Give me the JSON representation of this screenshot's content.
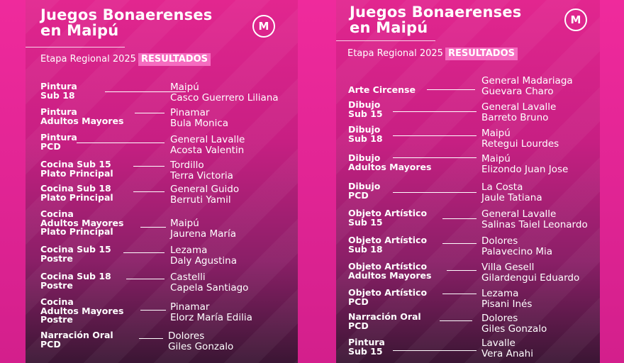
{
  "left": {
    "title_line1": "Juegos Bonaerenses",
    "title_line2": "en Maipú",
    "subtitle": "Etapa Regional 2025",
    "badge": "RESULTADOS",
    "logo_letter": "M",
    "entries": [
      {
        "category": "Pintura\nSub 18",
        "place": "Maipú",
        "name": "Casco Guerrero Liliana"
      },
      {
        "category": "Pintura\nAdultos Mayores",
        "place": "Pinamar",
        "name": "Bula Monica"
      },
      {
        "category": "Pintura\nPCD",
        "place": "General Lavalle",
        "name": "Acosta Valentin"
      },
      {
        "category": "Cocina Sub 15\nPlato Principal",
        "place": "Tordillo",
        "name": "Terra Victoria"
      },
      {
        "category": "Cocina Sub 18\nPlato Principal",
        "place": "General Guido",
        "name": "Berruti Yamil"
      },
      {
        "category": "Cocina\nAdultos Mayores\nPlato Principal",
        "place": "Maipú",
        "name": "Jaurena María"
      },
      {
        "category": "Cocina Sub 15\nPostre",
        "place": "Lezama",
        "name": "Daly Agustina"
      },
      {
        "category": "Cocina Sub 18\nPostre",
        "place": "Castelli",
        "name": "Capela Santiago"
      },
      {
        "category": "Cocina\nAdultos Mayores\nPostre",
        "place": "Pinamar",
        "name": "Elorz María Edilia"
      },
      {
        "category": "Narración Oral\nPCD",
        "place": "Dolores",
        "name": "Giles Gonzalo"
      }
    ]
  },
  "right": {
    "title_line1": "Juegos Bonaerenses",
    "title_line2": "en Maipú",
    "subtitle": "Etapa Regional 2025",
    "badge": "RESULTADOS",
    "logo_letter": "M",
    "entries": [
      {
        "category": "Arte Circense",
        "place": "General Madariaga",
        "name": "Guevara Charo"
      },
      {
        "category": "Dibujo\nSub 15",
        "place": "General Lavalle",
        "name": "Barreto Bruno"
      },
      {
        "category": "Dibujo\nSub 18",
        "place": "Maipú",
        "name": "Retegui Lourdes"
      },
      {
        "category": "Dibujo\nAdultos Mayores",
        "place": "Maipú",
        "name": "Elizondo Juan Jose"
      },
      {
        "category": "Dibujo\nPCD",
        "place": "La Costa",
        "name": "Jaule Tatiana"
      },
      {
        "category": "Objeto Artístico\nSub 15",
        "place": "General Lavalle",
        "name": "Salinas Taiel Leonardo"
      },
      {
        "category": "Objeto Artístico\nSub 18",
        "place": "Dolores",
        "name": "Palavecino Mia"
      },
      {
        "category": "Objeto Artístico\nAdultos Mayores",
        "place": "Villa Gesell",
        "name": "Gilardengui Eduardo"
      },
      {
        "category": "Objeto Artístico\nPCD",
        "place": "Lezama",
        "name": "Pisani Inés"
      },
      {
        "category": "Narración Oral\nPCD",
        "place": "Dolores",
        "name": "Giles Gonzalo"
      },
      {
        "category": "Pintura\nSub 15",
        "place": "Lavalle",
        "name": "Vera Anahi"
      }
    ]
  }
}
